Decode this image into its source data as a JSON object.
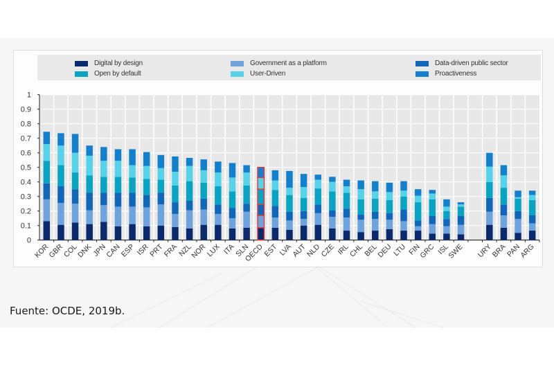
{
  "source_note": "Fuente: OCDE, 2019b.",
  "highlight_color": "#e03a3a",
  "chart_data": {
    "type": "bar",
    "stacked": true,
    "title": "",
    "xlabel": "",
    "ylabel": "",
    "ylim": [
      0,
      1
    ],
    "yticks": [
      "0",
      "0.1",
      "0.2",
      "0.3",
      "0.4",
      "0.5",
      "0.6",
      "0.7",
      "0.8",
      "0.9",
      "1"
    ],
    "grid": true,
    "legend_position": "top",
    "categories": [
      "KOR",
      "GBR",
      "COL",
      "DNK",
      "JPN",
      "CAN",
      "ESP",
      "ISR",
      "PRT",
      "FRA",
      "NZL",
      "NOR",
      "LUX",
      "ITA",
      "SLN",
      "OECD",
      "EST",
      "LVA",
      "AUT",
      "NLD",
      "CZE",
      "IRL",
      "CHL",
      "BEL",
      "DEU",
      "LTU",
      "FIN",
      "GRC",
      "ISL",
      "SWE",
      "",
      "URY",
      "BRA",
      "PAN",
      "ARG"
    ],
    "highlighted_category": "OECD",
    "series": [
      {
        "name": "Digital by design",
        "color": "#0b2a6b",
        "values": [
          0.13,
          0.105,
          0.12,
          0.11,
          0.125,
          0.095,
          0.11,
          0.095,
          0.1,
          0.09,
          0.08,
          0.105,
          0.105,
          0.08,
          0.085,
          0.085,
          0.085,
          0.07,
          0.1,
          0.105,
          0.08,
          0.065,
          0.055,
          0.065,
          0.075,
          0.065,
          0.065,
          0.045,
          0.045,
          0.04,
          0,
          0.105,
          0.085,
          0.05,
          0.065
        ]
      },
      {
        "name": "Government as a platform",
        "color": "#6fa3dc",
        "values": [
          0.15,
          0.15,
          0.13,
          0.095,
          0.115,
          0.135,
          0.12,
          0.13,
          0.145,
          0.09,
          0.125,
          0.105,
          0.075,
          0.07,
          0.11,
          0.085,
          0.07,
          0.065,
          0.045,
          0.08,
          0.08,
          0.09,
          0.085,
          0.08,
          0.065,
          0.065,
          0.03,
          0.065,
          0.05,
          0.065,
          0,
          0.09,
          0.085,
          0.095,
          0.05
        ]
      },
      {
        "name": "Data-driven public sector",
        "color": "#1266b8",
        "values": [
          0.11,
          0.115,
          0.1,
          0.12,
          0.085,
          0.095,
          0.095,
          0.085,
          0.08,
          0.08,
          0.065,
          0.075,
          0.065,
          0.07,
          0.055,
          0.075,
          0.08,
          0.06,
          0.055,
          0.06,
          0.045,
          0.06,
          0.035,
          0.05,
          0.045,
          0.08,
          0.04,
          0.055,
          0.05,
          0.06,
          0,
          0.095,
          0.075,
          0.055,
          0.055
        ]
      },
      {
        "name": "Open by default",
        "color": "#0ba3c2",
        "values": [
          0.155,
          0.145,
          0.115,
          0.12,
          0.11,
          0.11,
          0.105,
          0.11,
          0.09,
          0.115,
          0.135,
          0.11,
          0.125,
          0.115,
          0.125,
          0.105,
          0.11,
          0.115,
          0.09,
          0.11,
          0.13,
          0.11,
          0.105,
          0.09,
          0.09,
          0.09,
          0.125,
          0.115,
          0.055,
          0.065,
          0,
          0.11,
          0.115,
          0.085,
          0.105
        ]
      },
      {
        "name": "User-Driven",
        "color": "#58d2e8",
        "values": [
          0.115,
          0.135,
          0.135,
          0.135,
          0.11,
          0.11,
          0.085,
          0.09,
          0.08,
          0.095,
          0.105,
          0.085,
          0.095,
          0.095,
          0.09,
          0.08,
          0.065,
          0.05,
          0.075,
          0.06,
          0.065,
          0.045,
          0.07,
          0.05,
          0.055,
          0.04,
          0.045,
          0.04,
          0.03,
          0.015,
          0,
          0.105,
          0.085,
          0.01,
          0.035
        ]
      },
      {
        "name": "Proactiveness",
        "color": "#1480cc",
        "values": [
          0.085,
          0.085,
          0.13,
          0.07,
          0.095,
          0.08,
          0.11,
          0.095,
          0.09,
          0.105,
          0.055,
          0.075,
          0.075,
          0.1,
          0.05,
          0.07,
          0.07,
          0.115,
          0.09,
          0.035,
          0.035,
          0.045,
          0.06,
          0.07,
          0.065,
          0.065,
          0.045,
          0.025,
          0.05,
          0.015,
          0,
          0.095,
          0.07,
          0.045,
          0.03
        ]
      }
    ]
  }
}
